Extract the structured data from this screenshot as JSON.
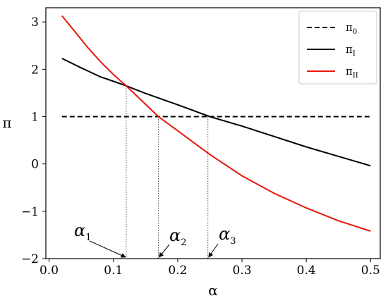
{
  "chart_data": {
    "type": "line",
    "xlabel": "α",
    "ylabel": "π",
    "xlim": [
      -0.005,
      0.515
    ],
    "ylim": [
      -2,
      3.3
    ],
    "xticks": [
      {
        "value": 0.0,
        "label": "0.0"
      },
      {
        "value": 0.1,
        "label": "0.1"
      },
      {
        "value": 0.2,
        "label": "0.2"
      },
      {
        "value": 0.3,
        "label": "0.3"
      },
      {
        "value": 0.4,
        "label": "0.4"
      },
      {
        "value": 0.5,
        "label": "0.5"
      }
    ],
    "yticks": [
      {
        "value": -2,
        "label": "−2"
      },
      {
        "value": -1,
        "label": "−1"
      },
      {
        "value": 0,
        "label": "0"
      },
      {
        "value": 1,
        "label": "1"
      },
      {
        "value": 2,
        "label": "2"
      },
      {
        "value": 3,
        "label": "3"
      }
    ],
    "legend_position": "top-right",
    "series": [
      {
        "id": "pi0",
        "name": "π",
        "sub": "0",
        "color": "#000000",
        "dash": "dashed",
        "x": [
          0.02,
          0.5
        ],
        "y": [
          1.0,
          1.0
        ]
      },
      {
        "id": "piI",
        "name": "π",
        "sub": "I",
        "color": "#000000",
        "dash": "solid",
        "x": [
          0.02,
          0.05,
          0.08,
          0.11,
          0.12,
          0.15,
          0.2,
          0.25,
          0.3,
          0.35,
          0.4,
          0.45,
          0.5
        ],
        "y": [
          2.23,
          2.03,
          1.84,
          1.7,
          1.65,
          1.49,
          1.25,
          1.0,
          0.8,
          0.58,
          0.36,
          0.16,
          -0.04
        ]
      },
      {
        "id": "piII",
        "name": "π",
        "sub": "II",
        "color": "#e8160c",
        "dash": "solid",
        "x": [
          0.02,
          0.04,
          0.06,
          0.08,
          0.1,
          0.12,
          0.15,
          0.17,
          0.2,
          0.25,
          0.3,
          0.35,
          0.4,
          0.45,
          0.5
        ],
        "y": [
          3.13,
          2.8,
          2.46,
          2.16,
          1.89,
          1.65,
          1.26,
          1.0,
          0.7,
          0.2,
          -0.25,
          -0.62,
          -0.93,
          -1.2,
          -1.42
        ]
      }
    ],
    "vlines": [
      {
        "x": 0.12,
        "y": 1.65
      },
      {
        "x": 0.17,
        "y": 1.0
      },
      {
        "x": 0.247,
        "y": 1.0
      }
    ],
    "annotations": [
      {
        "id": "alpha1",
        "text": "α",
        "sub": "1",
        "target_x": 0.12
      },
      {
        "id": "alpha2",
        "text": "α",
        "sub": "2",
        "target_x": 0.17
      },
      {
        "id": "alpha3",
        "text": "α",
        "sub": "3",
        "target_x": 0.247
      }
    ]
  }
}
